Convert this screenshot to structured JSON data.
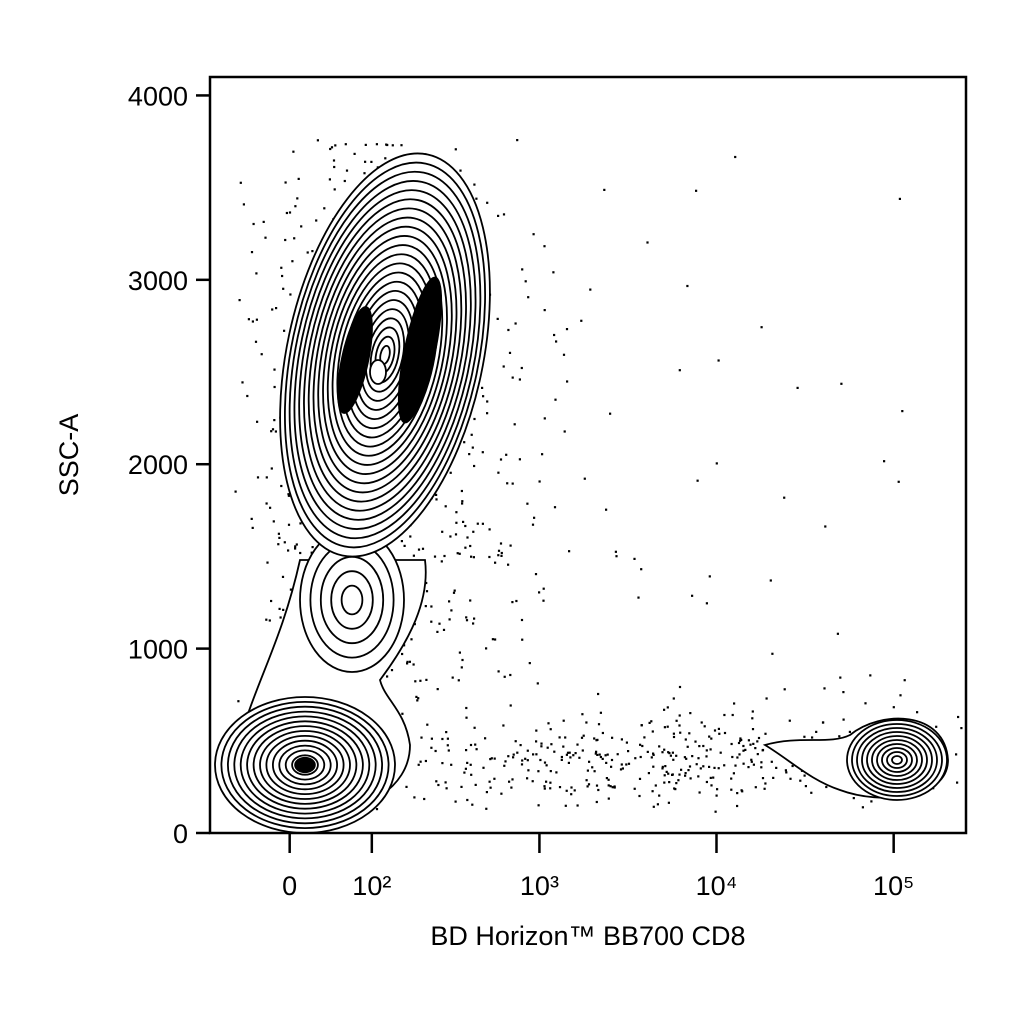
{
  "chart_data": {
    "type": "contour",
    "x_label": "BD Horizon™ BB700 CD8",
    "y_label": "SSC-A",
    "xscale": "biexponential",
    "xlim": [
      -96,
      256000
    ],
    "xticks": [
      0,
      {
        "value": 100,
        "label": "10²"
      },
      {
        "value": 1000,
        "label": "10³"
      },
      {
        "value": 10000,
        "label": "10⁴"
      },
      {
        "value": 100000,
        "label": "10⁵"
      }
    ],
    "ylim": [
      0,
      4100
    ],
    "yticks": [
      0,
      1000,
      2000,
      3000,
      4000
    ],
    "color": "#000000"
  }
}
